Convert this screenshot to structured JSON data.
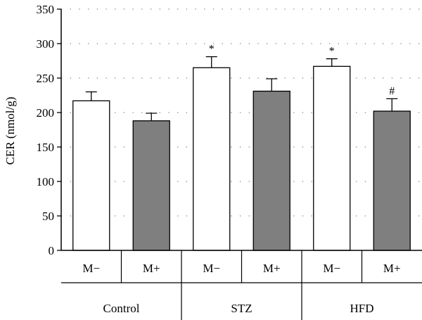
{
  "chart_data": {
    "type": "bar",
    "ylabel": "CER (nmol/g)",
    "ylim": [
      0,
      350
    ],
    "yticks": [
      0,
      50,
      100,
      150,
      200,
      250,
      300,
      350
    ],
    "grid": "dotted horizontal",
    "groups": [
      {
        "name": "Control",
        "bars": [
          {
            "label": "M−",
            "value": 217,
            "error": 13,
            "color": "#ffffff",
            "mark": ""
          },
          {
            "label": "M+",
            "value": 188,
            "error": 11,
            "color": "#7f7f7f",
            "mark": ""
          }
        ]
      },
      {
        "name": "STZ",
        "bars": [
          {
            "label": "M−",
            "value": 265,
            "error": 16,
            "color": "#ffffff",
            "mark": "*"
          },
          {
            "label": "M+",
            "value": 231,
            "error": 18,
            "color": "#7f7f7f",
            "mark": ""
          }
        ]
      },
      {
        "name": "HFD",
        "bars": [
          {
            "label": "M−",
            "value": 267,
            "error": 11,
            "color": "#ffffff",
            "mark": "*"
          },
          {
            "label": "M+",
            "value": 202,
            "error": 18,
            "color": "#7f7f7f",
            "mark": "#"
          }
        ]
      }
    ]
  }
}
